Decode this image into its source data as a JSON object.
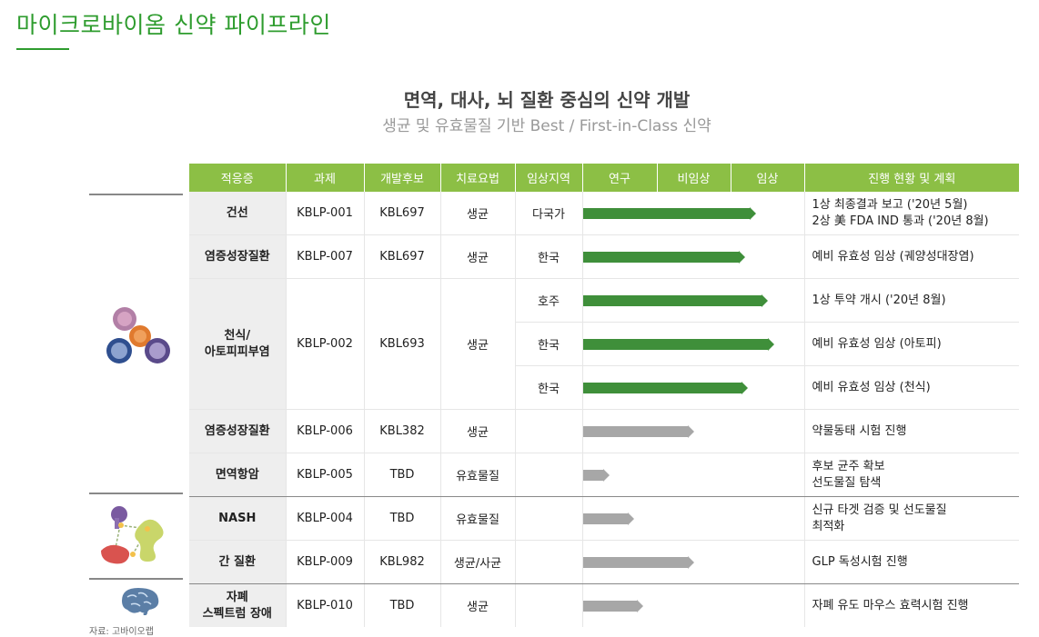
{
  "page_title": "마이크로바이옴 신약 파이프라인",
  "headline": "면역, 대사, 뇌 질환 중심의 신약 개발",
  "subheadline": "생균 및 유효물질 기반 Best / First-in-Class 신약",
  "headers": {
    "indication": "적응증",
    "project": "과제",
    "candidate": "개발후보",
    "therapy": "치료요법",
    "region": "임상지역",
    "research": "연구",
    "preclinical": "비임상",
    "clinical": "임상",
    "status": "진행 현황 및 계획"
  },
  "rows": [
    {
      "indication_lines": [
        "건선"
      ],
      "project": "KBLP-001",
      "candidate": "KBL697",
      "therapy": "생균",
      "region": "다국가",
      "progress": 0.78,
      "color": "green",
      "status_lines": [
        "1상 최종결과 보고 ('20년 5월)",
        "2상 美 FDA IND 통과 ('20년 8월)"
      ]
    },
    {
      "indication_lines": [
        "염증성장질환"
      ],
      "project": "KBLP-007",
      "candidate": "KBL697",
      "therapy": "생균",
      "region": "한국",
      "progress": 0.73,
      "color": "green",
      "status_lines": [
        "예비 유효성 임상 (궤양성대장염)"
      ]
    },
    {
      "indication_lines": [
        "천식/",
        "아토피피부염"
      ],
      "project": "KBLP-002",
      "candidate": "KBL693",
      "therapy": "생균",
      "region": "호주",
      "progress": 0.83,
      "color": "green",
      "status_lines": [
        "1상 투약 개시 ('20년 8월)"
      ]
    },
    {
      "region": "한국",
      "progress": 0.86,
      "color": "green",
      "status_lines": [
        "예비 유효성 임상 (아토피)"
      ]
    },
    {
      "region": "한국",
      "progress": 0.74,
      "color": "green",
      "status_lines": [
        "예비 유효성 임상 (천식)"
      ]
    },
    {
      "indication_lines": [
        "염증성장질환"
      ],
      "project": "KBLP-006",
      "candidate": "KBL382",
      "therapy": "생균",
      "region": "",
      "progress": 0.5,
      "color": "gray",
      "status_lines": [
        "약물동태 시험 진행"
      ]
    },
    {
      "indication_lines": [
        "면역항암"
      ],
      "project": "KBLP-005",
      "candidate": "TBD",
      "therapy": "유효물질",
      "region": "",
      "progress": 0.12,
      "color": "gray",
      "status_lines": [
        "후보 균주 확보",
        "선도물질 탐색"
      ]
    },
    {
      "indication_lines": [
        "NASH"
      ],
      "project": "KBLP-004",
      "candidate": "TBD",
      "therapy": "유효물질",
      "region": "",
      "progress": 0.23,
      "color": "gray",
      "status_lines": [
        "신규 타겟 검증 및 선도물질",
        "최적화"
      ]
    },
    {
      "indication_lines": [
        "간 질환"
      ],
      "project": "KBLP-009",
      "candidate": "KBL982",
      "therapy": "생균/사균",
      "region": "",
      "progress": 0.5,
      "color": "gray",
      "status_lines": [
        "GLP 독성시험 진행"
      ]
    },
    {
      "indication_lines": [
        "자폐",
        "스펙트럼 장애"
      ],
      "project": "KBLP-010",
      "candidate": "TBD",
      "therapy": "생균",
      "region": "",
      "progress": 0.27,
      "color": "gray",
      "status_lines": [
        "자폐 유도 마우스 효력시험 진행"
      ]
    }
  ],
  "icons": [
    "immune-cells-icon",
    "organs-icon",
    "brain-icon"
  ],
  "source": "자료: 고바이오랩"
}
